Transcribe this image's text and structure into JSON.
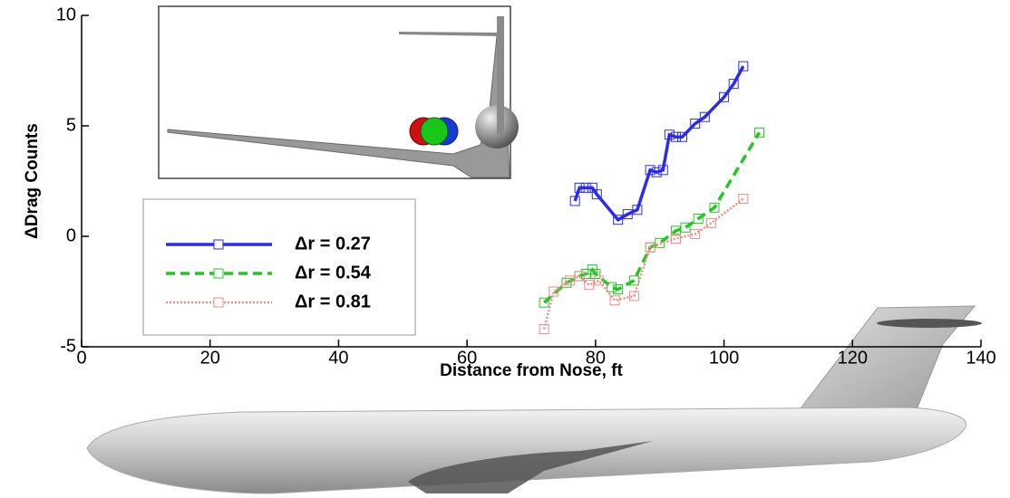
{
  "chart_data": {
    "type": "line",
    "xlabel": "Distance from Nose, ft",
    "ylabel": "ΔDrag Counts",
    "xlim": [
      0,
      140
    ],
    "ylim": [
      -5,
      10
    ],
    "xticks": [
      0,
      20,
      40,
      60,
      80,
      100,
      120,
      140
    ],
    "yticks": [
      -5,
      0,
      5,
      10
    ],
    "series": [
      {
        "name": "Δr = 0.27",
        "color": "#2b2bf0",
        "line_style": "solid",
        "x": [
          76.8,
          77.5,
          78.5,
          79.5,
          80.2,
          83.5,
          85,
          86.5,
          88.5,
          89.5,
          90.5,
          91.5,
          92.5,
          93.5,
          95.5,
          97,
          100,
          101.5,
          103
        ],
        "values": [
          1.6,
          2.2,
          2.2,
          2.2,
          1.9,
          0.75,
          1.0,
          1.2,
          3.0,
          2.9,
          3.0,
          4.6,
          4.5,
          4.5,
          5.1,
          5.4,
          6.3,
          6.9,
          7.7
        ]
      },
      {
        "name": "Δr = 0.54",
        "color": "#22c822",
        "line_style": "dashed",
        "x": [
          72,
          75.5,
          77.5,
          78.5,
          79.5,
          80,
          82.5,
          83.5,
          86,
          88.5,
          90,
          92.5,
          94,
          96,
          98.5,
          105.5
        ],
        "values": [
          -3,
          -2.1,
          -1.8,
          -1.7,
          -1.5,
          -1.7,
          -2.3,
          -2.4,
          -2.0,
          -0.5,
          -0.3,
          0.25,
          0.4,
          0.8,
          1.3,
          4.7
        ]
      },
      {
        "name": "Δr = 0.81",
        "color": "#f08a8a",
        "line_style": "dotted",
        "x": [
          72,
          73.5,
          76,
          77.5,
          79,
          80.5,
          83,
          86,
          88.5,
          92.5,
          95.5,
          98,
          103
        ],
        "values": [
          -4.2,
          -2.5,
          -2.0,
          -1.8,
          -2.2,
          -2.0,
          -2.9,
          -2.7,
          -0.5,
          -0.1,
          0.1,
          0.6,
          1.7
        ]
      }
    ]
  }
}
